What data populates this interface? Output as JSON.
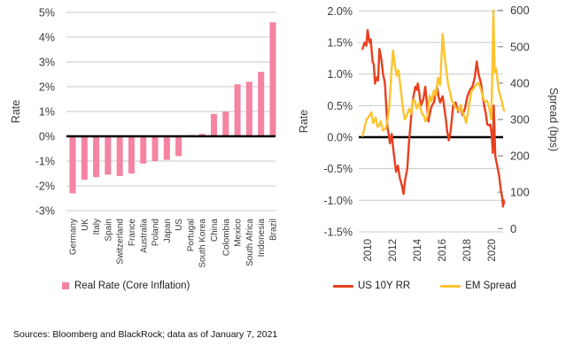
{
  "footer": {
    "sources": "Sources: Bloomberg and BlackRock; data as of January 7, 2021"
  },
  "colors": {
    "pink": "#F583A2",
    "red": "#E8401F",
    "yellow": "#FCC42D",
    "grid": "#C9C9C9",
    "zero_line": "#000000",
    "tick_text": "#3A3A3A"
  },
  "chart_data": [
    {
      "type": "bar",
      "title": "",
      "ylabel": "Rate",
      "ylim": [
        -3,
        5
      ],
      "yticks": [
        5,
        4,
        3,
        2,
        1,
        0,
        -1,
        -2,
        -3
      ],
      "ytick_suffix": "%",
      "grid": true,
      "categories": [
        "Germany",
        "UK",
        "Italy",
        "Spain",
        "Switzerland",
        "France",
        "Australia",
        "Poland",
        "Japan",
        "US",
        "Portugal",
        "South Korea",
        "China",
        "Colombia",
        "Mexico",
        "South Africa",
        "Indonesia",
        "Brazil"
      ],
      "values": [
        -2.3,
        -1.75,
        -1.65,
        -1.55,
        -1.6,
        -1.5,
        -1.1,
        -1.0,
        -0.95,
        -0.8,
        0.05,
        0.1,
        0.9,
        1.0,
        2.1,
        2.2,
        2.6,
        4.6
      ],
      "bar_color": "#F583A2",
      "legend_label": "Real Rate (Core Inflation)"
    },
    {
      "type": "line",
      "title": "",
      "ylabel_left": "Rate",
      "ylabel_right": "Spread (bps)",
      "ylim_left": [
        -1.5,
        2.0
      ],
      "yticks_left": [
        2.0,
        1.5,
        1.0,
        0.5,
        0.0,
        -0.5,
        -1.0,
        -1.5
      ],
      "ylim_right": [
        0,
        600
      ],
      "yticks_right": [
        600,
        500,
        400,
        300,
        200,
        100,
        0
      ],
      "xlim": [
        2009.6,
        2021.1
      ],
      "xticks": [
        2010,
        2012,
        2014,
        2016,
        2018,
        2020
      ],
      "grid": true,
      "legend_position": "bottom",
      "series": [
        {
          "name": "US 10Y RR",
          "axis": "left",
          "color": "#E8401F",
          "points": [
            [
              2009.65,
              1.4
            ],
            [
              2009.8,
              1.5
            ],
            [
              2009.95,
              1.45
            ],
            [
              2010.05,
              1.7
            ],
            [
              2010.2,
              1.5
            ],
            [
              2010.3,
              1.55
            ],
            [
              2010.45,
              1.2
            ],
            [
              2010.55,
              1.15
            ],
            [
              2010.65,
              0.85
            ],
            [
              2010.8,
              0.95
            ],
            [
              2010.9,
              0.9
            ],
            [
              2011.0,
              1.4
            ],
            [
              2011.15,
              1.25
            ],
            [
              2011.3,
              1.0
            ],
            [
              2011.45,
              0.85
            ],
            [
              2011.55,
              0.5
            ],
            [
              2011.65,
              0.15
            ],
            [
              2011.75,
              0.05
            ],
            [
              2011.85,
              -0.1
            ],
            [
              2012.0,
              0.05
            ],
            [
              2012.1,
              -0.15
            ],
            [
              2012.25,
              -0.4
            ],
            [
              2012.35,
              -0.55
            ],
            [
              2012.5,
              -0.45
            ],
            [
              2012.65,
              -0.65
            ],
            [
              2012.8,
              -0.75
            ],
            [
              2012.95,
              -0.9
            ],
            [
              2013.1,
              -0.65
            ],
            [
              2013.25,
              -0.5
            ],
            [
              2013.4,
              -0.05
            ],
            [
              2013.6,
              0.4
            ],
            [
              2013.75,
              0.65
            ],
            [
              2013.9,
              0.8
            ],
            [
              2014.0,
              0.75
            ],
            [
              2014.1,
              0.85
            ],
            [
              2014.35,
              0.5
            ],
            [
              2014.55,
              0.6
            ],
            [
              2014.7,
              0.8
            ],
            [
              2014.95,
              0.25
            ],
            [
              2015.15,
              0.45
            ],
            [
              2015.4,
              0.55
            ],
            [
              2015.65,
              0.8
            ],
            [
              2015.9,
              0.55
            ],
            [
              2016.1,
              0.65
            ],
            [
              2016.35,
              0.3
            ],
            [
              2016.6,
              -0.05
            ],
            [
              2016.75,
              0.1
            ],
            [
              2016.95,
              0.5
            ],
            [
              2017.15,
              0.55
            ],
            [
              2017.35,
              0.4
            ],
            [
              2017.55,
              0.5
            ],
            [
              2017.7,
              0.35
            ],
            [
              2017.9,
              0.45
            ],
            [
              2018.1,
              0.65
            ],
            [
              2018.3,
              0.75
            ],
            [
              2018.5,
              0.8
            ],
            [
              2018.7,
              0.95
            ],
            [
              2018.85,
              1.2
            ],
            [
              2019.0,
              1.0
            ],
            [
              2019.2,
              0.85
            ],
            [
              2019.45,
              0.5
            ],
            [
              2019.7,
              0.2
            ],
            [
              2019.95,
              0.2
            ],
            [
              2020.05,
              0.05
            ],
            [
              2020.15,
              -0.25
            ],
            [
              2020.22,
              0.5
            ],
            [
              2020.35,
              -0.3
            ],
            [
              2020.5,
              -0.45
            ],
            [
              2020.65,
              -0.6
            ],
            [
              2020.8,
              -0.85
            ],
            [
              2020.9,
              -0.95
            ],
            [
              2020.97,
              -1.1
            ],
            [
              2021.02,
              -1.0
            ],
            [
              2021.06,
              -1.05
            ]
          ]
        },
        {
          "name": "EM Spread",
          "axis": "right",
          "color": "#FCC42D",
          "points": [
            [
              2009.65,
              255
            ],
            [
              2009.85,
              285
            ],
            [
              2010.1,
              305
            ],
            [
              2010.35,
              320
            ],
            [
              2010.5,
              290
            ],
            [
              2010.7,
              305
            ],
            [
              2010.85,
              280
            ],
            [
              2011.1,
              295
            ],
            [
              2011.3,
              270
            ],
            [
              2011.55,
              280
            ],
            [
              2011.8,
              335
            ],
            [
              2011.95,
              420
            ],
            [
              2012.1,
              490
            ],
            [
              2012.25,
              450
            ],
            [
              2012.4,
              420
            ],
            [
              2012.55,
              435
            ],
            [
              2012.7,
              390
            ],
            [
              2012.9,
              330
            ],
            [
              2013.05,
              300
            ],
            [
              2013.2,
              310
            ],
            [
              2013.4,
              330
            ],
            [
              2013.55,
              315
            ],
            [
              2013.75,
              355
            ],
            [
              2014.0,
              330
            ],
            [
              2014.2,
              345
            ],
            [
              2014.45,
              315
            ],
            [
              2014.7,
              295
            ],
            [
              2014.9,
              310
            ],
            [
              2015.05,
              365
            ],
            [
              2015.2,
              350
            ],
            [
              2015.4,
              380
            ],
            [
              2015.55,
              365
            ],
            [
              2015.72,
              415
            ],
            [
              2015.9,
              395
            ],
            [
              2016.1,
              535
            ],
            [
              2016.25,
              480
            ],
            [
              2016.4,
              435
            ],
            [
              2016.55,
              395
            ],
            [
              2016.7,
              375
            ],
            [
              2016.85,
              350
            ],
            [
              2017.1,
              335
            ],
            [
              2017.3,
              325
            ],
            [
              2017.55,
              340
            ],
            [
              2017.75,
              315
            ],
            [
              2018.0,
              290
            ],
            [
              2018.2,
              330
            ],
            [
              2018.4,
              375
            ],
            [
              2018.6,
              385
            ],
            [
              2018.78,
              395
            ],
            [
              2019.0,
              400
            ],
            [
              2019.3,
              370
            ],
            [
              2019.55,
              350
            ],
            [
              2019.8,
              340
            ],
            [
              2019.92,
              320
            ],
            [
              2020.02,
              300
            ],
            [
              2020.12,
              450
            ],
            [
              2020.19,
              600
            ],
            [
              2020.3,
              430
            ],
            [
              2020.42,
              440
            ],
            [
              2020.6,
              385
            ],
            [
              2020.75,
              365
            ],
            [
              2020.88,
              350
            ],
            [
              2021.0,
              330
            ],
            [
              2021.06,
              325
            ]
          ]
        }
      ]
    }
  ]
}
